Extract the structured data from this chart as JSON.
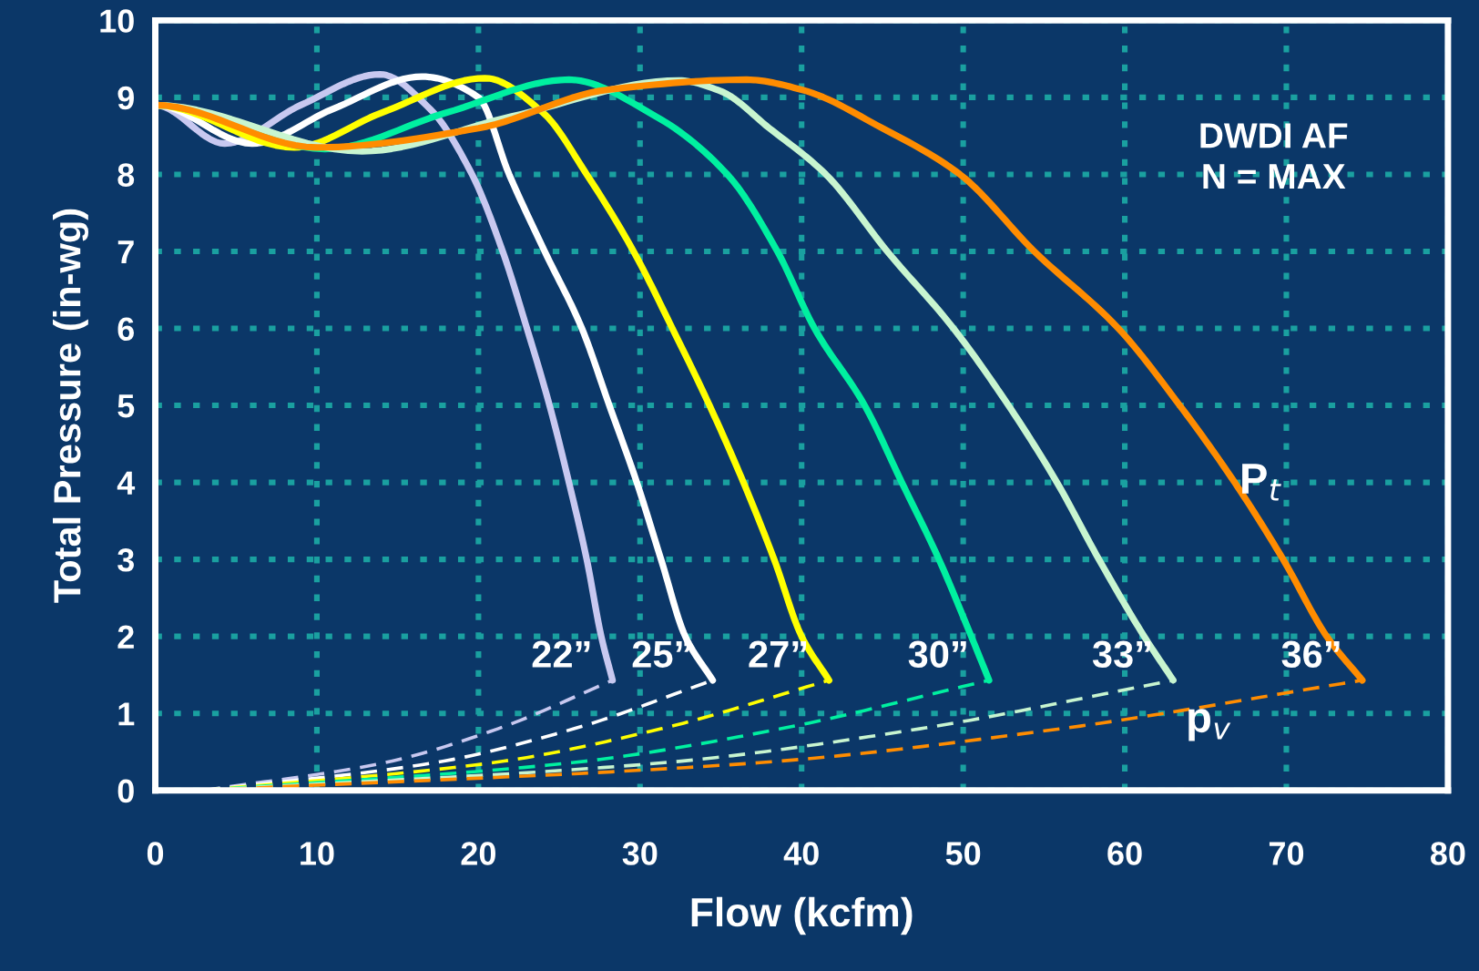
{
  "chart_data": {
    "type": "line",
    "xlabel": "Flow (kcfm)",
    "ylabel": "Total Pressure (in-wg)",
    "xlim": [
      0,
      80
    ],
    "xticks": [
      0,
      10,
      20,
      30,
      40,
      50,
      60,
      70,
      80
    ],
    "ylim": [
      0,
      10
    ],
    "yticks": [
      0,
      1,
      2,
      3,
      4,
      5,
      6,
      7,
      8,
      9,
      10
    ],
    "grid": true,
    "legend": false,
    "series": [
      {
        "name": "22”",
        "color": "#c8c8f0",
        "line_style": "solid",
        "x": [
          0,
          4.3,
          9,
          13.9,
          17,
          19.6,
          21.5,
          23.0,
          24.4,
          25.6,
          26.7,
          27.6,
          28.3
        ],
        "values": [
          8.9,
          8.4,
          8.9,
          9.3,
          8.85,
          8,
          7,
          6,
          5,
          4,
          3,
          2,
          1.43
        ]
      },
      {
        "name": "25”",
        "color": "#ffffff",
        "line_style": "solid",
        "x": [
          0,
          6,
          11,
          16.5,
          20,
          21.9,
          24.1,
          26.4,
          28.1,
          29.8,
          31.3,
          32.8,
          34.5
        ],
        "values": [
          8.9,
          8.4,
          8.85,
          9.27,
          9.0,
          8,
          7,
          6,
          5,
          4,
          3,
          2,
          1.43
        ]
      },
      {
        "name": "27”",
        "color": "#ffff00",
        "line_style": "solid",
        "x": [
          0,
          8.6,
          14,
          20.4,
          24,
          26.7,
          29.6,
          32.0,
          34.3,
          36.4,
          38.3,
          40.0,
          41.7
        ],
        "values": [
          8.9,
          8.35,
          8.8,
          9.25,
          8.8,
          8,
          7,
          6,
          5,
          4,
          3,
          2,
          1.43
        ]
      },
      {
        "name": "30”",
        "color": "#00f0a0",
        "line_style": "solid",
        "x": [
          0,
          10.5,
          18,
          25.6,
          31,
          35.4,
          38.5,
          40.8,
          43.9,
          46.2,
          48.5,
          50.5,
          51.6
        ],
        "values": [
          8.9,
          8.33,
          8.8,
          9.23,
          8.75,
          8,
          7,
          6,
          5,
          4,
          3,
          2,
          1.43
        ]
      },
      {
        "name": "33”",
        "color": "#c8f5d0",
        "line_style": "solid",
        "x": [
          0,
          12.8,
          22,
          32.4,
          35,
          38,
          41.5,
          45.3,
          49.4,
          52.8,
          55.8,
          58.4,
          61.2,
          63.0
        ],
        "values": [
          8.9,
          8.3,
          8.75,
          9.22,
          9.08,
          8.6,
          8,
          7,
          6,
          5,
          4,
          3,
          2,
          1.43
        ]
      },
      {
        "name": "36”",
        "color": "#ff8c00",
        "line_style": "solid",
        "x": [
          0,
          10,
          20,
          28,
          36.6,
          40,
          45,
          49.8,
          54.4,
          59.6,
          63.4,
          66.8,
          69.8,
          72.5,
          74.7
        ],
        "values": [
          8.9,
          8.35,
          8.6,
          9.1,
          9.23,
          9.1,
          8.6,
          8,
          7,
          6,
          5,
          4,
          3,
          2,
          1.43
        ]
      },
      {
        "color": "#c8c8f0",
        "line_style": "dashed",
        "x": [
          3,
          14.2,
          21.2,
          28.3
        ],
        "values": [
          0,
          0.36,
          0.8,
          1.43
        ]
      },
      {
        "color": "#ffffff",
        "line_style": "dashed",
        "x": [
          3,
          17.3,
          25.9,
          34.5
        ],
        "values": [
          0,
          0.36,
          0.8,
          1.43
        ]
      },
      {
        "color": "#ffff00",
        "line_style": "dashed",
        "x": [
          3,
          20.9,
          31.3,
          41.7
        ],
        "values": [
          0,
          0.36,
          0.8,
          1.43
        ]
      },
      {
        "color": "#00f0a0",
        "line_style": "dashed",
        "x": [
          3,
          25.8,
          38.7,
          51.6
        ],
        "values": [
          0,
          0.36,
          0.8,
          1.43
        ]
      },
      {
        "color": "#c8f5d0",
        "line_style": "dashed",
        "x": [
          3,
          31.5,
          47.3,
          63.0
        ],
        "values": [
          0,
          0.36,
          0.8,
          1.43
        ]
      },
      {
        "color": "#ff8c00",
        "line_style": "dashed",
        "x": [
          3,
          37.4,
          56.0,
          74.7
        ],
        "values": [
          0,
          0.36,
          0.8,
          1.43
        ]
      }
    ],
    "annotations": [
      "DWDI AF\nN = MAX",
      "P$_{t}$",
      "p$_{v}$"
    ]
  }
}
